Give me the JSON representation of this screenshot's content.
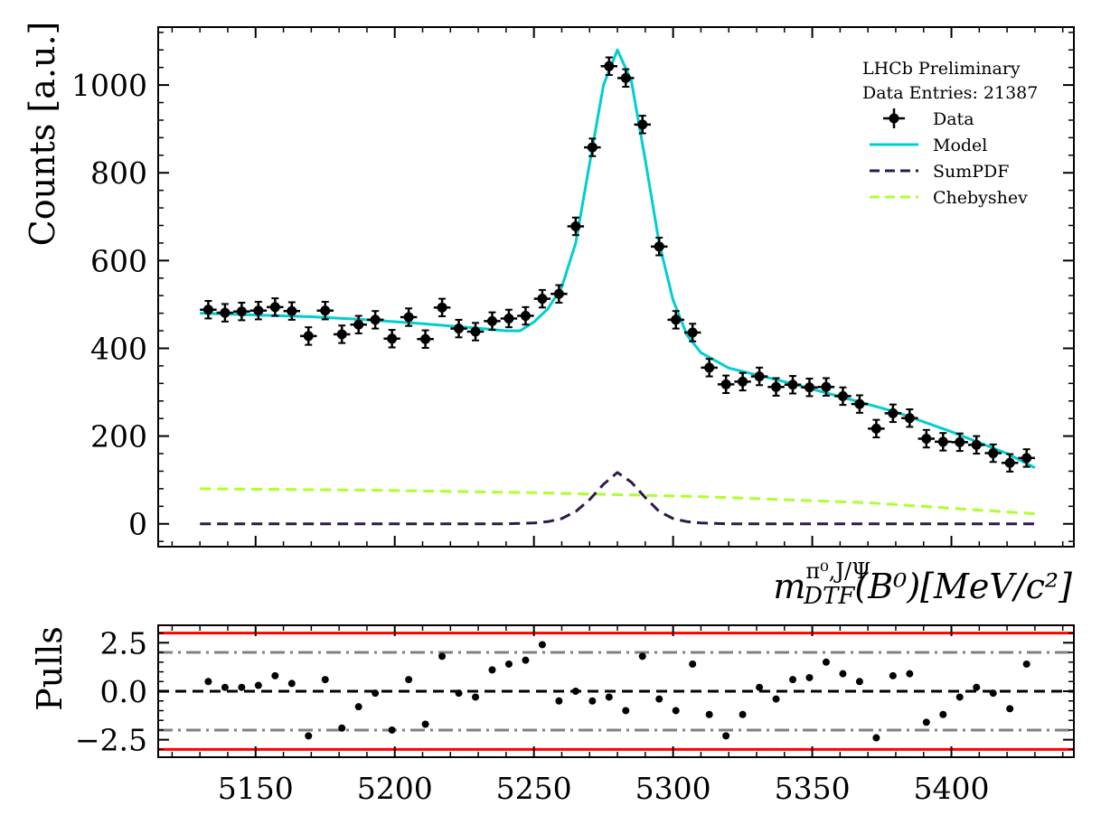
{
  "chart_data": [
    {
      "type": "scatter",
      "panel": "main",
      "title": "",
      "ylabel": "Counts [a.u.]",
      "xlabel_parts": {
        "base": "m",
        "sup": "π⁰,J/Ψ",
        "sub": "DTF",
        "rest": "(B⁰)[MeV/c²]"
      },
      "xlim": [
        5115,
        5444
      ],
      "ylim": [
        -52,
        1132
      ],
      "yticks": [
        0,
        200,
        400,
        600,
        800,
        1000
      ],
      "grid": false,
      "legend_position": "top-right",
      "annotations": [
        "LHCb Preliminary",
        "Data Entries: 21387"
      ],
      "legend": [
        {
          "label": "Data",
          "style": "errorbar",
          "color": "#000000"
        },
        {
          "label": "Model",
          "style": "solid",
          "color": "#00CED1"
        },
        {
          "label": "SumPDF",
          "style": "dashed",
          "color": "#2E1A47"
        },
        {
          "label": "Chebyshev",
          "style": "dashed",
          "color": "#ADFF2F"
        }
      ],
      "data_points": {
        "x": [
          5133,
          5139,
          5145,
          5151,
          5157,
          5163,
          5169,
          5175,
          5181,
          5187,
          5193,
          5199,
          5205,
          5211,
          5217,
          5223,
          5229,
          5235,
          5241,
          5247,
          5253,
          5259,
          5265,
          5271,
          5277,
          5283,
          5289,
          5295,
          5301,
          5307,
          5313,
          5319,
          5325,
          5331,
          5337,
          5343,
          5349,
          5355,
          5361,
          5367,
          5373,
          5379,
          5385,
          5391,
          5397,
          5403,
          5409,
          5415,
          5421,
          5427
        ],
        "y": [
          488,
          481,
          484,
          486,
          494,
          485,
          428,
          486,
          432,
          454,
          465,
          422,
          471,
          421,
          493,
          445,
          438,
          462,
          468,
          474,
          513,
          524,
          678,
          858,
          1043,
          1016,
          910,
          632,
          465,
          436,
          356,
          318,
          324,
          336,
          312,
          317,
          311,
          312,
          291,
          273,
          217,
          252,
          241,
          194,
          187,
          186,
          180,
          161,
          139,
          150
        ],
        "yerr": [
          20,
          20,
          20,
          20,
          20,
          20,
          20,
          20,
          20,
          20,
          20,
          20,
          20,
          20,
          20,
          20,
          20,
          20,
          20,
          20,
          20,
          20,
          20,
          20,
          20,
          20,
          20,
          20,
          20,
          20,
          20,
          20,
          20,
          20,
          20,
          20,
          20,
          20,
          20,
          20,
          20,
          20,
          20,
          20,
          20,
          20,
          20,
          20,
          20,
          20
        ],
        "xerr": 3
      },
      "model": {
        "x": [
          5130,
          5150,
          5170,
          5190,
          5210,
          5230,
          5240,
          5245,
          5250,
          5255,
          5260,
          5265,
          5270,
          5275,
          5280,
          5285,
          5290,
          5295,
          5300,
          5305,
          5310,
          5320,
          5340,
          5360,
          5380,
          5400,
          5420,
          5430
        ],
        "y": [
          480,
          476,
          472,
          465,
          456,
          446,
          440,
          440,
          460,
          490,
          540,
          640,
          820,
          1000,
          1080,
          1010,
          830,
          640,
          510,
          430,
          390,
          355,
          324,
          290,
          255,
          210,
          160,
          128
        ]
      },
      "sumpdf": {
        "x": [
          5130,
          5240,
          5250,
          5255,
          5260,
          5265,
          5270,
          5275,
          5280,
          5285,
          5290,
          5295,
          5300,
          5305,
          5310,
          5320,
          5430
        ],
        "y": [
          0,
          0,
          2,
          5,
          12,
          28,
          55,
          90,
          117,
          95,
          60,
          28,
          12,
          5,
          2,
          0,
          0
        ]
      },
      "chebyshev": {
        "x": [
          5130,
          5190,
          5250,
          5310,
          5370,
          5430
        ],
        "y": [
          80,
          77,
          71,
          62,
          48,
          23
        ]
      }
    },
    {
      "type": "scatter",
      "panel": "pulls",
      "ylabel": "Pulls",
      "xlim": [
        5115,
        5444
      ],
      "ylim": [
        -3.4,
        3.4
      ],
      "yticks": [
        2.5,
        0.0,
        -2.5
      ],
      "ytick_labels": [
        "2.5",
        "0.0",
        "−2.5"
      ],
      "xticks": [
        5150,
        5200,
        5250,
        5300,
        5350,
        5400
      ],
      "reference_lines": [
        {
          "y": 3,
          "style": "solid",
          "color": "#FF0000"
        },
        {
          "y": -3,
          "style": "solid",
          "color": "#FF0000"
        },
        {
          "y": 2,
          "style": "dashdot",
          "color": "#808080"
        },
        {
          "y": -2,
          "style": "dashdot",
          "color": "#808080"
        },
        {
          "y": 0,
          "style": "dashed",
          "color": "#000000"
        }
      ],
      "x": [
        5133,
        5139,
        5145,
        5151,
        5157,
        5163,
        5169,
        5175,
        5181,
        5187,
        5193,
        5199,
        5205,
        5211,
        5217,
        5223,
        5229,
        5235,
        5241,
        5247,
        5253,
        5259,
        5265,
        5271,
        5277,
        5283,
        5289,
        5295,
        5301,
        5307,
        5313,
        5319,
        5325,
        5331,
        5337,
        5343,
        5349,
        5355,
        5361,
        5367,
        5373,
        5379,
        5385,
        5391,
        5397,
        5403,
        5409,
        5415,
        5421,
        5427
      ],
      "y": [
        0.5,
        0.2,
        0.2,
        0.3,
        0.8,
        0.4,
        -2.3,
        0.6,
        -1.9,
        -0.8,
        -0.1,
        -2.0,
        0.6,
        -1.7,
        1.8,
        -0.1,
        -0.3,
        1.1,
        1.4,
        1.6,
        2.4,
        -0.5,
        0.0,
        -0.5,
        -0.3,
        -1.0,
        1.8,
        -0.4,
        -1.0,
        1.4,
        -1.2,
        -2.3,
        -1.2,
        0.2,
        -0.4,
        0.6,
        0.7,
        1.5,
        0.9,
        0.5,
        -2.4,
        0.8,
        0.9,
        -1.6,
        -1.2,
        -0.3,
        0.2,
        -0.1,
        -0.9,
        1.4
      ]
    }
  ]
}
